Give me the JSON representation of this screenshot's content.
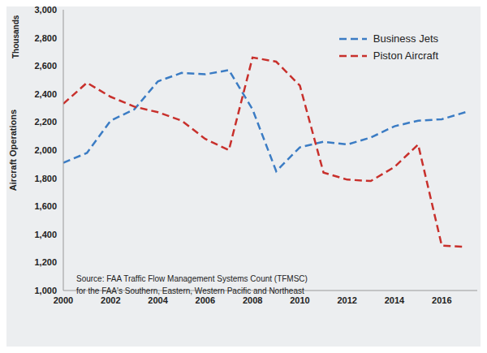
{
  "chart_data": {
    "type": "line",
    "ylabel": "Aircraft Operations",
    "ylabel_units": "Thousands",
    "annotations": [
      "Source: FAA Traffic Flow Management Systems Count (TFMSC)",
      "for the FAA's Southern, Eastern, Western Pacific and Northeast"
    ],
    "x": [
      2000,
      2001,
      2002,
      2003,
      2004,
      2005,
      2006,
      2007,
      2008,
      2009,
      2010,
      2011,
      2012,
      2013,
      2014,
      2015,
      2016,
      2017
    ],
    "series": [
      {
        "name": "Business Jets",
        "color": "#3b7cc4",
        "line_style": "dashed",
        "marker": "none",
        "values": [
          1910,
          1980,
          2210,
          2290,
          2490,
          2550,
          2540,
          2570,
          2290,
          1850,
          2020,
          2060,
          2040,
          2090,
          2170,
          2210,
          2220,
          2270
        ]
      },
      {
        "name": "Piston Aircraft",
        "color": "#c8302c",
        "line_style": "dashed",
        "marker": "none",
        "values": [
          2330,
          2480,
          2380,
          2310,
          2270,
          2210,
          2080,
          2000,
          2660,
          2630,
          2460,
          1840,
          1790,
          1780,
          1880,
          2040,
          1320,
          1310
        ]
      }
    ],
    "xlim": [
      2000,
      2017.5
    ],
    "xticks": [
      2000,
      2002,
      2004,
      2006,
      2008,
      2010,
      2012,
      2014,
      2016
    ],
    "ylim": [
      1000,
      3000
    ],
    "yticks": [
      {
        "value": 1000,
        "label": "1,000"
      },
      {
        "value": 1200,
        "label": "1,200"
      },
      {
        "value": 1400,
        "label": "1,400"
      },
      {
        "value": 1600,
        "label": "1,600"
      },
      {
        "value": 1800,
        "label": "1,800"
      },
      {
        "value": 2000,
        "label": "2,000"
      },
      {
        "value": 2200,
        "label": "2,200"
      },
      {
        "value": 2400,
        "label": "2,400"
      },
      {
        "value": 2600,
        "label": "2,600"
      },
      {
        "value": 2800,
        "label": "2,800"
      },
      {
        "value": 3000,
        "label": "3,000"
      }
    ],
    "grid": false,
    "legend": "upper right"
  }
}
